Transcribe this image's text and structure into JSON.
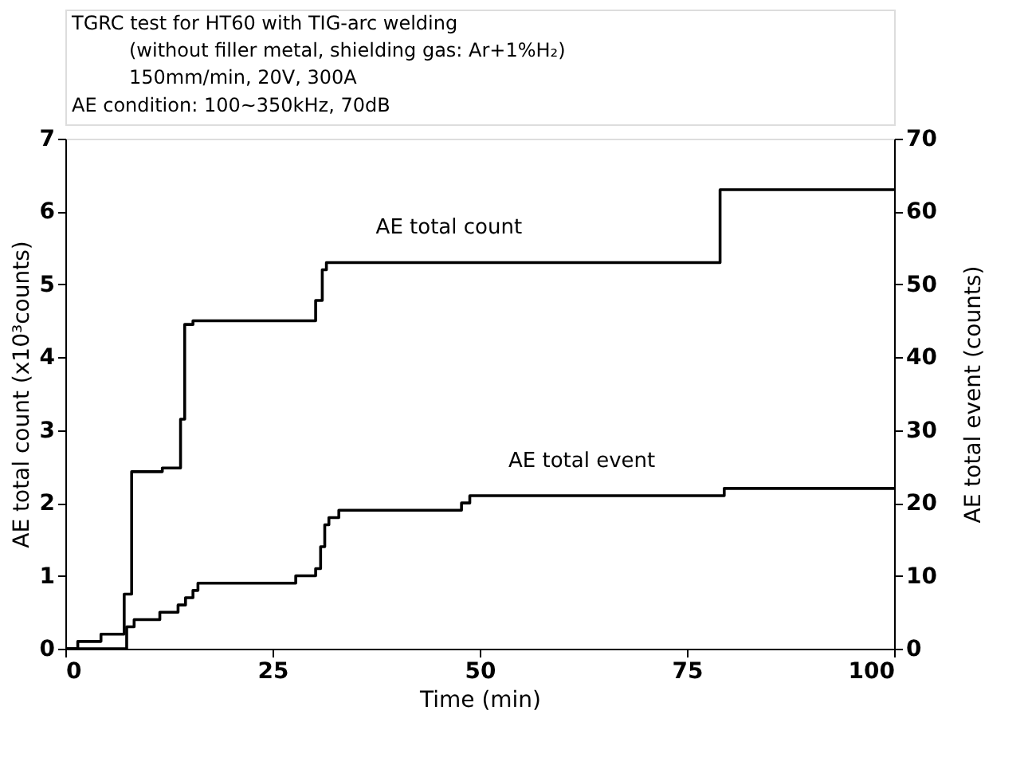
{
  "chart_data": {
    "type": "step",
    "title": "TGRC test for HT60 with TIG-arc welding",
    "subtitle": "(without filler metal, shielding gas: Ar+1%H₂)\n150mm/min, 20V, 300A",
    "xlabel": "Time  (min)",
    "ylabel": "AE total count (x10³counts)",
    "y2label": "AE total event (counts)",
    "annotations": [
      "AE condition: 100~350kHz, 70dB",
      {
        "text": "AE total count",
        "x": 39,
        "y": 5.3
      },
      {
        "text": "AE total event",
        "x": 55,
        "y": 2.1
      }
    ],
    "series": [
      {
        "color": "#000000",
        "x": [
          0,
          1.5,
          4.3,
          7.1,
          8.0,
          11.7,
          13.9,
          14.4,
          15.4,
          30.2,
          31.0,
          31.5,
          79,
          100
        ],
        "values": [
          0,
          0.1,
          0.2,
          0.75,
          2.43,
          2.48,
          3.15,
          4.45,
          4.5,
          4.78,
          5.2,
          5.3,
          6.3,
          6.3
        ]
      },
      {
        "color": "#000000",
        "axis": "y2",
        "x": [
          0,
          7.4,
          8.3,
          11.4,
          13.6,
          14.5,
          15.4,
          16.0,
          27.8,
          30.2,
          30.8,
          31.3,
          31.8,
          33.0,
          47.8,
          48.8,
          79.5,
          100
        ],
        "values": [
          0,
          3,
          4,
          5,
          6,
          7,
          8,
          9,
          10,
          11,
          14,
          17,
          18,
          19,
          20,
          21,
          22,
          22
        ]
      }
    ],
    "xlim": [
      0,
      100
    ],
    "xticks": [
      0,
      25,
      50,
      75,
      100
    ],
    "ylim": [
      0,
      7
    ],
    "yticks": [
      0,
      1,
      2,
      3,
      4,
      5,
      6,
      7
    ],
    "y2lim": [
      0,
      70
    ],
    "y2ticks": [
      0,
      10,
      20,
      30,
      40,
      50,
      60,
      70
    ],
    "grid": false,
    "marker": "none",
    "line_style": "solid"
  }
}
